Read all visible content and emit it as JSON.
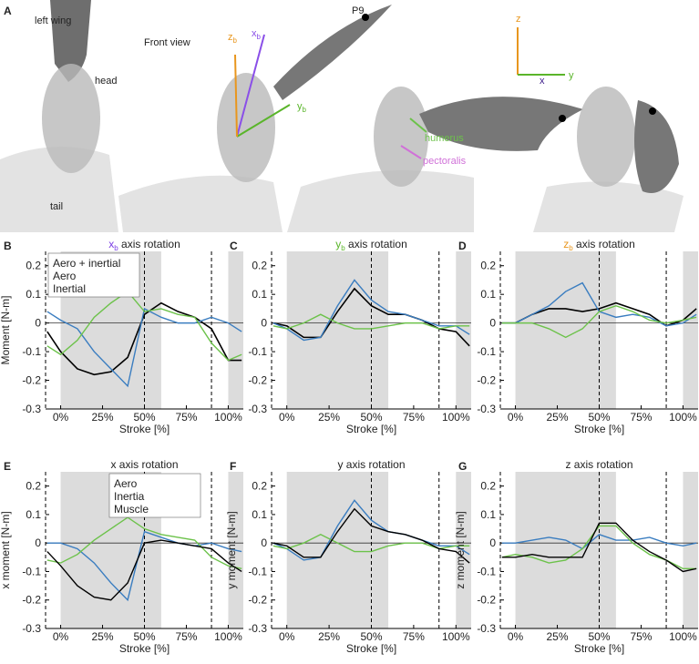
{
  "illustration": {
    "panel": "A",
    "left_wing": "left wing",
    "front_view": "Front view",
    "head": "head",
    "tail": "tail",
    "p9": "P9",
    "humerus": "humerus",
    "pectoralis": "pectoralis",
    "body_axes": [
      {
        "symbol": "x",
        "subscript": "b"
      },
      {
        "symbol": "y",
        "subscript": "b"
      },
      {
        "symbol": "z",
        "subscript": "b"
      }
    ],
    "global_axes": [
      "z",
      "y",
      "x"
    ]
  },
  "chart_data": [
    {
      "type": "line",
      "panel": "B",
      "title": {
        "symbol": "x",
        "subscript": "b",
        "text": "axis rotation"
      },
      "title_color": "#7b3fe4",
      "ylabel": "Moment [N-m]",
      "xlabel": "Stroke [%]",
      "x": [
        -8,
        0,
        10,
        20,
        30,
        40,
        50,
        60,
        70,
        80,
        90,
        100,
        108
      ],
      "series": [
        {
          "name": "Aero + inertial",
          "color": "#000000",
          "values": [
            -0.03,
            -0.1,
            -0.16,
            -0.18,
            -0.17,
            -0.12,
            0.03,
            0.07,
            0.04,
            0.02,
            -0.02,
            -0.13,
            -0.13
          ]
        },
        {
          "name": "Aero",
          "color": "#3a7dc0",
          "values": [
            0.04,
            0.01,
            -0.02,
            -0.1,
            -0.16,
            -0.22,
            0.05,
            0.02,
            0.0,
            0.0,
            0.02,
            0.0,
            -0.03
          ]
        },
        {
          "name": "Inertial",
          "color": "#6cc24a",
          "values": [
            -0.08,
            -0.11,
            -0.06,
            0.02,
            0.07,
            0.11,
            0.04,
            0.05,
            0.03,
            0.02,
            -0.07,
            -0.13,
            -0.11
          ]
        }
      ],
      "xlim": [
        -9,
        109
      ],
      "ylim": [
        -0.3,
        0.25
      ],
      "yticks": [
        -0.3,
        -0.2,
        -0.1,
        0,
        0.1,
        0.2
      ],
      "xticks": [
        {
          "value": 0,
          "label": "0%"
        },
        {
          "value": 25,
          "label": "25%"
        },
        {
          "value": 50,
          "label": "50%"
        },
        {
          "value": 75,
          "label": "75%"
        },
        {
          "value": 100,
          "label": "100%"
        }
      ],
      "shaded": [
        [
          0,
          60
        ],
        [
          100,
          109
        ]
      ],
      "vlines": [
        50,
        90
      ],
      "legend": "upper left"
    },
    {
      "type": "line",
      "panel": "C",
      "title": {
        "symbol": "y",
        "subscript": "b",
        "text": "axis rotation"
      },
      "title_color": "#5ab52a",
      "xlabel": "Stroke [%]",
      "x": [
        -8,
        0,
        10,
        20,
        30,
        40,
        50,
        60,
        70,
        80,
        90,
        100,
        108
      ],
      "series": [
        {
          "color": "#000000",
          "values": [
            0.0,
            -0.01,
            -0.05,
            -0.05,
            0.04,
            0.12,
            0.06,
            0.03,
            0.03,
            0.01,
            -0.02,
            -0.03,
            -0.08
          ]
        },
        {
          "color": "#3a7dc0",
          "values": [
            0.0,
            -0.02,
            -0.06,
            -0.05,
            0.06,
            0.15,
            0.08,
            0.04,
            0.03,
            0.01,
            -0.01,
            -0.01,
            -0.04
          ]
        },
        {
          "color": "#6cc24a",
          "values": [
            -0.01,
            -0.02,
            0.0,
            0.03,
            0.0,
            -0.02,
            -0.02,
            -0.01,
            0.0,
            0.0,
            -0.02,
            -0.01,
            -0.01
          ]
        }
      ],
      "xlim": [
        -9,
        109
      ],
      "ylim": [
        -0.3,
        0.25
      ],
      "yticks": [
        -0.3,
        -0.2,
        -0.1,
        0,
        0.1,
        0.2
      ],
      "xticks": [
        {
          "value": 0,
          "label": "0%"
        },
        {
          "value": 25,
          "label": "25%"
        },
        {
          "value": 50,
          "label": "50%"
        },
        {
          "value": 75,
          "label": "75%"
        },
        {
          "value": 100,
          "label": "100%"
        }
      ],
      "shaded": [
        [
          0,
          60
        ],
        [
          100,
          109
        ]
      ],
      "vlines": [
        50,
        90
      ]
    },
    {
      "type": "line",
      "panel": "D",
      "title": {
        "symbol": "z",
        "subscript": "b",
        "text": "axis rotation"
      },
      "title_color": "#e8961e",
      "xlabel": "Stroke [%]",
      "x": [
        -8,
        0,
        10,
        20,
        30,
        40,
        50,
        60,
        70,
        80,
        90,
        100,
        108
      ],
      "series": [
        {
          "color": "#000000",
          "values": [
            0.0,
            0.0,
            0.03,
            0.05,
            0.05,
            0.04,
            0.05,
            0.07,
            0.05,
            0.03,
            -0.01,
            0.01,
            0.05
          ]
        },
        {
          "color": "#3a7dc0",
          "values": [
            0.0,
            0.0,
            0.03,
            0.06,
            0.11,
            0.14,
            0.04,
            0.02,
            0.03,
            0.02,
            -0.01,
            0.0,
            0.03
          ]
        },
        {
          "color": "#6cc24a",
          "values": [
            0.0,
            0.0,
            0.0,
            -0.02,
            -0.05,
            -0.02,
            0.04,
            0.06,
            0.04,
            0.01,
            0.0,
            0.01,
            0.02
          ]
        }
      ],
      "xlim": [
        -9,
        109
      ],
      "ylim": [
        -0.3,
        0.25
      ],
      "yticks": [
        -0.3,
        -0.2,
        -0.1,
        0,
        0.1,
        0.2
      ],
      "xticks": [
        {
          "value": 0,
          "label": "0%"
        },
        {
          "value": 25,
          "label": "25%"
        },
        {
          "value": 50,
          "label": "50%"
        },
        {
          "value": 75,
          "label": "75%"
        },
        {
          "value": 100,
          "label": "100%"
        }
      ],
      "shaded": [
        [
          0,
          60
        ],
        [
          100,
          109
        ]
      ],
      "vlines": [
        50,
        90
      ]
    },
    {
      "type": "line",
      "panel": "E",
      "title": {
        "symbol": "x",
        "text": "axis rotation"
      },
      "title_color": "#222222",
      "ylabel": "x moment [N-m]",
      "xlabel": "Stroke [%]",
      "x": [
        -8,
        0,
        10,
        20,
        30,
        40,
        50,
        60,
        70,
        80,
        90,
        100,
        108
      ],
      "series": [
        {
          "name": "Aero",
          "color": "#3a7dc0",
          "values": [
            0.0,
            0.0,
            -0.02,
            -0.07,
            -0.14,
            -0.2,
            0.04,
            0.02,
            0.0,
            -0.01,
            0.0,
            -0.02,
            -0.03
          ]
        },
        {
          "name": "Inertia",
          "color": "#6cc24a",
          "values": [
            -0.06,
            -0.07,
            -0.04,
            0.01,
            0.05,
            0.09,
            0.05,
            0.03,
            0.02,
            0.01,
            -0.05,
            -0.08,
            -0.09
          ]
        },
        {
          "name": "Muscle",
          "color": "#000000",
          "values": [
            -0.03,
            -0.08,
            -0.15,
            -0.19,
            -0.2,
            -0.14,
            0.0,
            0.01,
            0.0,
            -0.01,
            -0.02,
            -0.07,
            -0.1
          ]
        }
      ],
      "xlim": [
        -9,
        109
      ],
      "ylim": [
        -0.3,
        0.25
      ],
      "yticks": [
        -0.3,
        -0.2,
        -0.1,
        0,
        0.1,
        0.2
      ],
      "xticks": [
        {
          "value": 0,
          "label": "0%"
        },
        {
          "value": 25,
          "label": "25%"
        },
        {
          "value": 50,
          "label": "50%"
        },
        {
          "value": 75,
          "label": "75%"
        },
        {
          "value": 100,
          "label": "100%"
        }
      ],
      "shaded": [
        [
          0,
          60
        ],
        [
          100,
          109
        ]
      ],
      "vlines": [
        50,
        90
      ],
      "legend": "upper center"
    },
    {
      "type": "line",
      "panel": "F",
      "title": {
        "symbol": "y",
        "text": "axis rotation"
      },
      "title_color": "#222222",
      "ylabel": "y moment [N-m]",
      "xlabel": "Stroke [%]",
      "x": [
        -8,
        0,
        10,
        20,
        30,
        40,
        50,
        60,
        70,
        80,
        90,
        100,
        108
      ],
      "series": [
        {
          "color": "#3a7dc0",
          "values": [
            0.0,
            -0.02,
            -0.06,
            -0.05,
            0.06,
            0.15,
            0.08,
            0.04,
            0.03,
            0.01,
            -0.01,
            -0.01,
            -0.04
          ]
        },
        {
          "color": "#6cc24a",
          "values": [
            -0.01,
            -0.02,
            0.0,
            0.03,
            0.0,
            -0.03,
            -0.03,
            -0.01,
            0.0,
            0.0,
            -0.02,
            -0.01,
            -0.01
          ]
        },
        {
          "color": "#000000",
          "values": [
            0.0,
            -0.01,
            -0.05,
            -0.05,
            0.04,
            0.12,
            0.06,
            0.04,
            0.03,
            0.01,
            -0.02,
            -0.03,
            -0.07
          ]
        }
      ],
      "xlim": [
        -9,
        109
      ],
      "ylim": [
        -0.3,
        0.25
      ],
      "yticks": [
        -0.3,
        -0.2,
        -0.1,
        0,
        0.1,
        0.2
      ],
      "xticks": [
        {
          "value": 0,
          "label": "0%"
        },
        {
          "value": 25,
          "label": "25%"
        },
        {
          "value": 50,
          "label": "50%"
        },
        {
          "value": 75,
          "label": "75%"
        },
        {
          "value": 100,
          "label": "100%"
        }
      ],
      "shaded": [
        [
          0,
          60
        ],
        [
          100,
          109
        ]
      ],
      "vlines": [
        50,
        90
      ]
    },
    {
      "type": "line",
      "panel": "G",
      "title": {
        "symbol": "z",
        "text": "axis rotation"
      },
      "title_color": "#222222",
      "ylabel": "z moment [N-m]",
      "xlabel": "Stroke [%]",
      "x": [
        -8,
        0,
        10,
        20,
        30,
        40,
        50,
        60,
        70,
        80,
        90,
        100,
        108
      ],
      "series": [
        {
          "color": "#3a7dc0",
          "values": [
            0.0,
            0.0,
            0.01,
            0.02,
            0.01,
            -0.02,
            0.03,
            0.01,
            0.01,
            0.02,
            0.0,
            -0.01,
            0.0
          ]
        },
        {
          "color": "#6cc24a",
          "values": [
            -0.05,
            -0.04,
            -0.05,
            -0.07,
            -0.06,
            -0.02,
            0.06,
            0.06,
            0.0,
            -0.04,
            -0.06,
            -0.09,
            -0.09
          ]
        },
        {
          "color": "#000000",
          "values": [
            -0.05,
            -0.05,
            -0.04,
            -0.05,
            -0.05,
            -0.05,
            0.07,
            0.07,
            0.01,
            -0.03,
            -0.06,
            -0.1,
            -0.09
          ]
        }
      ],
      "xlim": [
        -9,
        109
      ],
      "ylim": [
        -0.3,
        0.25
      ],
      "yticks": [
        -0.3,
        -0.2,
        -0.1,
        0,
        0.1,
        0.2
      ],
      "xticks": [
        {
          "value": 0,
          "label": "0%"
        },
        {
          "value": 25,
          "label": "25%"
        },
        {
          "value": 50,
          "label": "50%"
        },
        {
          "value": 75,
          "label": "75%"
        },
        {
          "value": 100,
          "label": "100%"
        }
      ],
      "shaded": [
        [
          0,
          60
        ],
        [
          100,
          109
        ]
      ],
      "vlines": [
        50,
        90
      ]
    }
  ]
}
